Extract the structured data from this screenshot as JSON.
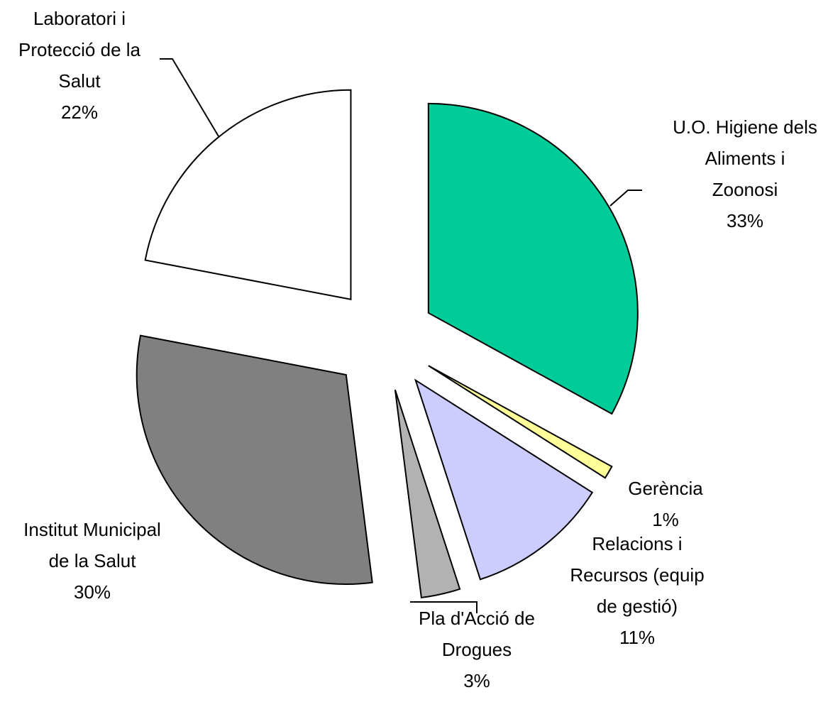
{
  "chart_data": {
    "type": "pie",
    "categories": [
      "U.O. Higiene dels\nAliments i\nZoonosi",
      "Gerència",
      "Relacions i\nRecursos (equip\nde gestió)",
      "Pla d'Acció de\nDrogues",
      "Institut Municipal\nde la Salut",
      "Laboratori i\nProtecció de la\nSalut"
    ],
    "values": [
      33,
      1,
      11,
      3,
      30,
      22
    ],
    "value_labels": [
      "33%",
      "1%",
      "11%",
      "3%",
      "30%",
      "22%"
    ],
    "colors": [
      "#00cc99",
      "#ffff99",
      "#ccccff",
      "#b2b2b2",
      "#808080",
      "#ffffff"
    ]
  }
}
